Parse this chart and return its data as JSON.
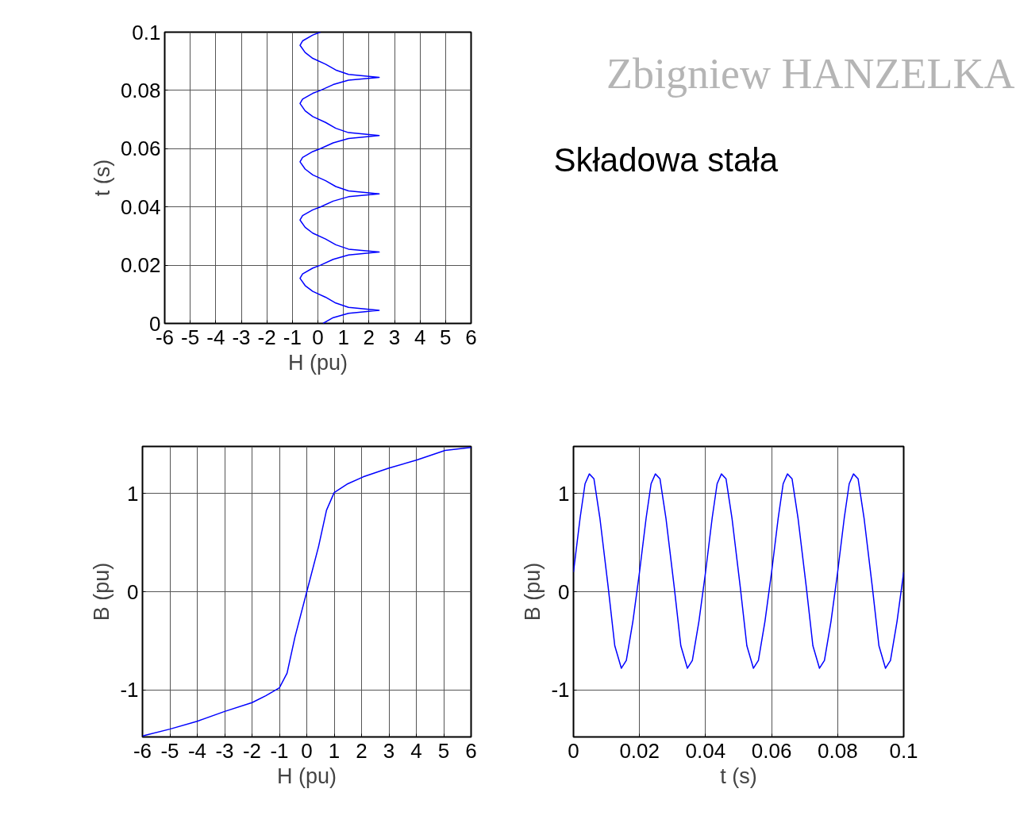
{
  "chart_data": [
    {
      "type": "line",
      "xlabel": "H (pu)",
      "ylabel": "t (s)",
      "xlim": [
        -6,
        6
      ],
      "ylim": [
        0,
        0.1
      ],
      "xticks": [
        -6,
        -5,
        -4,
        -3,
        -2,
        -1,
        0,
        1,
        2,
        3,
        4,
        5,
        6
      ],
      "yticks": [
        0,
        0.02,
        0.04,
        0.06,
        0.08,
        0.1
      ],
      "grid": true,
      "series": [
        {
          "color": "#0000ff",
          "x": [
            0.2,
            0.6,
            1.2,
            2.4,
            1.2,
            0.7,
            0.3,
            -0.2,
            -0.5,
            -0.7,
            -0.6,
            -0.2,
            0.1,
            0.6,
            1.2,
            2.4,
            1.2,
            0.7,
            0.3,
            -0.2,
            -0.5,
            -0.7,
            -0.6,
            -0.2,
            0.1,
            0.6,
            1.2,
            2.4,
            1.2,
            0.7,
            0.3,
            -0.2,
            -0.5,
            -0.7,
            -0.6,
            -0.2,
            0.1,
            0.6,
            1.2,
            2.4,
            1.2,
            0.7,
            0.3,
            -0.2,
            -0.5,
            -0.7,
            -0.6,
            -0.2,
            0.1,
            0.6,
            1.2,
            2.4,
            1.2,
            0.7,
            0.3,
            -0.2,
            -0.5,
            -0.7,
            -0.6,
            -0.2,
            0.1
          ],
          "values": [
            0,
            0.002,
            0.0035,
            0.0045,
            0.0055,
            0.007,
            0.009,
            0.011,
            0.013,
            0.0155,
            0.017,
            0.019,
            0.02,
            0.022,
            0.0235,
            0.0245,
            0.0255,
            0.027,
            0.029,
            0.031,
            0.033,
            0.0355,
            0.037,
            0.039,
            0.04,
            0.042,
            0.0435,
            0.0445,
            0.0455,
            0.047,
            0.049,
            0.051,
            0.053,
            0.0555,
            0.057,
            0.059,
            0.06,
            0.062,
            0.0635,
            0.0645,
            0.0655,
            0.067,
            0.069,
            0.071,
            0.073,
            0.0755,
            0.077,
            0.079,
            0.08,
            0.082,
            0.0835,
            0.0845,
            0.0855,
            0.087,
            0.089,
            0.091,
            0.093,
            0.0955,
            0.097,
            0.099,
            0.1
          ]
        }
      ]
    },
    {
      "type": "line",
      "xlabel": "H (pu)",
      "ylabel": "B (pu)",
      "xlim": [
        -6,
        6
      ],
      "ylim": [
        -1.48,
        1.48
      ],
      "xticks": [
        -6,
        -5,
        -4,
        -3,
        -2,
        -1,
        0,
        1,
        2,
        3,
        4,
        5,
        6
      ],
      "yticks": [
        -1,
        0,
        1
      ],
      "grid": true,
      "series": [
        {
          "color": "#0000ff",
          "x": [
            -6,
            -5,
            -4,
            -3,
            -2,
            -1.5,
            -1.0,
            -0.72,
            -0.43,
            0,
            0.43,
            0.72,
            1.0,
            1.5,
            2.06,
            3,
            4,
            5.05,
            6
          ],
          "values": [
            -1.47,
            -1.4,
            -1.32,
            -1.22,
            -1.13,
            -1.06,
            -0.98,
            -0.83,
            -0.46,
            0,
            0.46,
            0.83,
            1.01,
            1.1,
            1.17,
            1.26,
            1.34,
            1.44,
            1.47
          ]
        }
      ]
    },
    {
      "type": "line",
      "xlabel": "t (s)",
      "ylabel": "B (pu)",
      "xlim": [
        0,
        0.1
      ],
      "ylim": [
        -1.48,
        1.48
      ],
      "xticks": [
        0,
        0.02,
        0.04,
        0.06,
        0.08,
        0.1
      ],
      "yticks": [
        -1,
        0,
        1
      ],
      "grid": true,
      "series": [
        {
          "color": "#0000ff",
          "x": [
            0,
            0.002,
            0.0035,
            0.0048,
            0.0062,
            0.008,
            0.0105,
            0.0125,
            0.0145,
            0.016,
            0.018,
            0.02,
            0.022,
            0.0235,
            0.0248,
            0.0262,
            0.028,
            0.0305,
            0.0325,
            0.0345,
            0.036,
            0.038,
            0.04,
            0.042,
            0.0435,
            0.0448,
            0.0462,
            0.048,
            0.0505,
            0.0525,
            0.0545,
            0.056,
            0.058,
            0.06,
            0.062,
            0.0635,
            0.0648,
            0.0662,
            0.068,
            0.0705,
            0.0725,
            0.0745,
            0.076,
            0.078,
            0.08,
            0.082,
            0.0835,
            0.0848,
            0.0862,
            0.088,
            0.0905,
            0.0925,
            0.0945,
            0.096,
            0.098,
            0.1
          ],
          "values": [
            0.2,
            0.75,
            1.1,
            1.2,
            1.15,
            0.75,
            0.05,
            -0.55,
            -0.78,
            -0.7,
            -0.3,
            0.2,
            0.75,
            1.1,
            1.2,
            1.15,
            0.75,
            0.05,
            -0.55,
            -0.78,
            -0.7,
            -0.3,
            0.2,
            0.75,
            1.1,
            1.2,
            1.15,
            0.75,
            0.05,
            -0.55,
            -0.78,
            -0.7,
            -0.3,
            0.2,
            0.75,
            1.1,
            1.2,
            1.15,
            0.75,
            0.05,
            -0.55,
            -0.78,
            -0.7,
            -0.3,
            0.2,
            0.75,
            1.1,
            1.2,
            1.15,
            0.75,
            0.05,
            -0.55,
            -0.78,
            -0.7,
            -0.3,
            0.2
          ]
        }
      ]
    },
    {
      "type": "other",
      "annotations": [
        "Zbigniew HANZELKA",
        "Składowa stała"
      ]
    }
  ]
}
